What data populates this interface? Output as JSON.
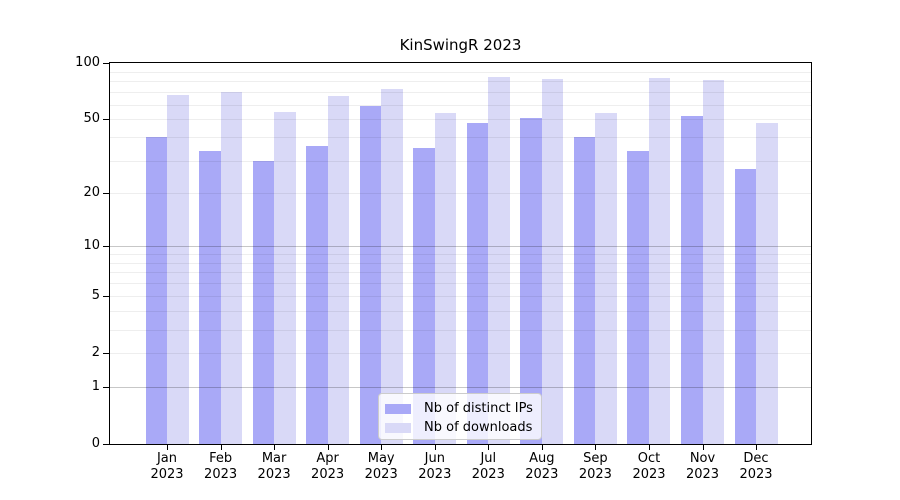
{
  "chart_data": {
    "type": "bar",
    "title": "KinSwingR 2023",
    "months": [
      "Jan",
      "Feb",
      "Mar",
      "Apr",
      "May",
      "Jun",
      "Jul",
      "Aug",
      "Sep",
      "Oct",
      "Nov",
      "Dec"
    ],
    "year_label": "2023",
    "categories": [
      "Jan 2023",
      "Feb 2023",
      "Mar 2023",
      "Apr 2023",
      "May 2023",
      "Jun 2023",
      "Jul 2023",
      "Aug 2023",
      "Sep 2023",
      "Oct 2023",
      "Nov 2023",
      "Dec 2023"
    ],
    "series": [
      {
        "name": "Nb of distinct IPs",
        "color": "#a9a9f7",
        "values": [
          40,
          34,
          30,
          36,
          59,
          35,
          48,
          51,
          40,
          34,
          52,
          27
        ]
      },
      {
        "name": "Nb of downloads",
        "color": "#d9d9f7",
        "values": [
          68,
          70,
          55,
          67,
          73,
          54,
          84,
          82,
          54,
          83,
          81,
          48
        ]
      }
    ],
    "y_axis": {
      "scale": "log1p",
      "max": 100,
      "ticks": [
        100,
        50,
        20,
        10,
        5,
        2,
        1,
        0
      ],
      "minor_gridlines": [
        2,
        3,
        4,
        5,
        6,
        7,
        8,
        9,
        20,
        30,
        40,
        50,
        60,
        70,
        80,
        90
      ],
      "major_gridlines": [
        1,
        10
      ]
    },
    "legend_position": "lower center",
    "grid": true
  }
}
